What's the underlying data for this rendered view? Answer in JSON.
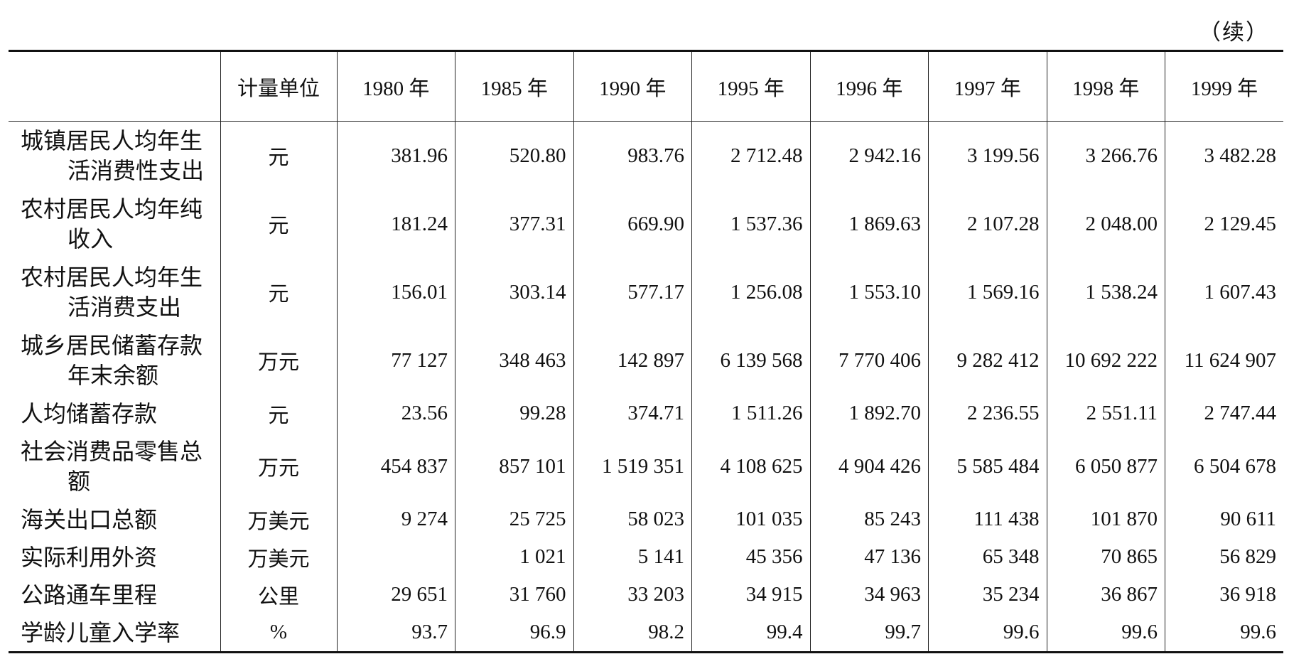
{
  "note": "（续）",
  "table": {
    "header": [
      "",
      "计量单位",
      "1980 年",
      "1985 年",
      "1990 年",
      "1995 年",
      "1996 年",
      "1997 年",
      "1998 年",
      "1999 年"
    ],
    "rows": [
      [
        "城镇居民人均年生活消费性支出",
        "元",
        "381.96",
        "520.80",
        "983.76",
        "2 712.48",
        "2 942.16",
        "3 199.56",
        "3 266.76",
        "3 482.28"
      ],
      [
        "农村居民人均年纯收入",
        "元",
        "181.24",
        "377.31",
        "669.90",
        "1 537.36",
        "1 869.63",
        "2 107.28",
        "2 048.00",
        "2 129.45"
      ],
      [
        "农村居民人均年生活消费支出",
        "元",
        "156.01",
        "303.14",
        "577.17",
        "1 256.08",
        "1 553.10",
        "1 569.16",
        "1 538.24",
        "1 607.43"
      ],
      [
        "城乡居民储蓄存款年末余额",
        "万元",
        "77 127",
        "348 463",
        "142 897",
        "6 139 568",
        "7 770 406",
        "9 282 412",
        "10 692 222",
        "11 624 907"
      ],
      [
        "人均储蓄存款",
        "元",
        "23.56",
        "99.28",
        "374.71",
        "1 511.26",
        "1 892.70",
        "2 236.55",
        "2 551.11",
        "2 747.44"
      ],
      [
        "社会消费品零售总额",
        "万元",
        "454 837",
        "857 101",
        "1 519 351",
        "4 108 625",
        "4 904 426",
        "5 585 484",
        "6 050 877",
        "6 504 678"
      ],
      [
        "海关出口总额",
        "万美元",
        "9 274",
        "25 725",
        "58 023",
        "101 035",
        "85 243",
        "111 438",
        "101 870",
        "90 611"
      ],
      [
        "实际利用外资",
        "万美元",
        null,
        "1 021",
        "5 141",
        "45 356",
        "47 136",
        "65 348",
        "70 865",
        "56 829"
      ],
      [
        "公路通车里程",
        "公里",
        "29 651",
        "31 760",
        "33 203",
        "34 915",
        "34 963",
        "35 234",
        "36 867",
        "36 918"
      ],
      [
        "学龄儿童入学率",
        "%",
        "93.7",
        "96.9",
        "98.2",
        "99.4",
        "99.7",
        "99.6",
        "99.6",
        "99.6"
      ]
    ]
  }
}
